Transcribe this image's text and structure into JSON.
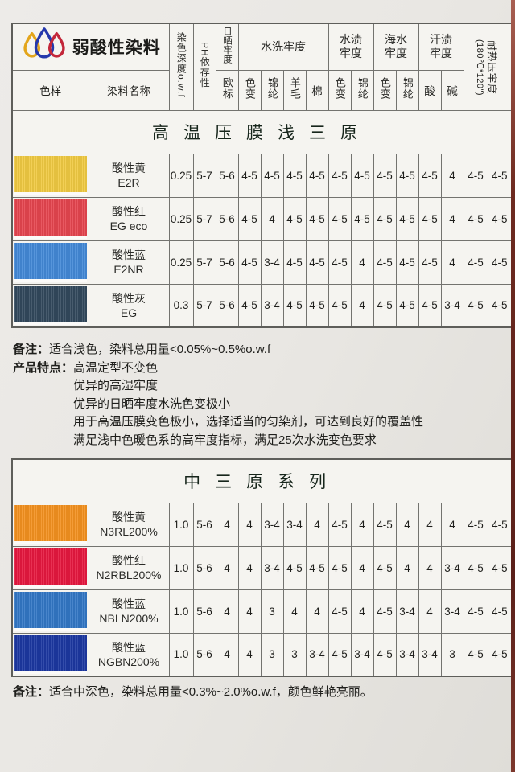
{
  "brand": {
    "title": "弱酸性染料"
  },
  "colors": {
    "banner_green": "#c7e1ca",
    "table_border": "#73736f",
    "page_background": "#eae8e4",
    "edge_strip": "#6d2a20",
    "logo_drops": [
      "#e3a51b",
      "#2438ac",
      "#c3273a"
    ]
  },
  "header": {
    "sample": "色样",
    "name": "染料名称",
    "depth": "染色深度o.w.f",
    "ph": "PH依存性",
    "light": "日晒牢度",
    "eu": "欧标",
    "wash": "水洗牢度",
    "wash_subs": [
      "色变",
      "锦纶",
      "羊毛",
      "棉"
    ],
    "water": "水渍\n牢度",
    "water_subs": [
      "色变",
      "锦纶"
    ],
    "sea": "海水\n牢度",
    "sea_subs": [
      "色变",
      "锦纶"
    ],
    "sweat": "汗渍\n牢度",
    "sweat_subs": [
      "酸",
      "碱"
    ],
    "heat1": "耐热压牢度",
    "heat2": "(180℃*120\")"
  },
  "table1": {
    "banner": "高温压膜浅三原",
    "rows": [
      {
        "swatch": "#f0ca42",
        "name": "酸性黄",
        "code": "E2R",
        "values": [
          "0.25",
          "5-7",
          "5-6",
          "4-5",
          "4-5",
          "4-5",
          "4-5",
          "4-5",
          "4-5",
          "4-5",
          "4-5",
          "4-5",
          "4",
          "4-5",
          "4-5"
        ]
      },
      {
        "swatch": "#e5454f",
        "name": "酸性红",
        "code": "EG eco",
        "values": [
          "0.25",
          "5-7",
          "5-6",
          "4-5",
          "4",
          "4-5",
          "4-5",
          "4-5",
          "4-5",
          "4-5",
          "4-5",
          "4-5",
          "4",
          "4-5",
          "4-5"
        ]
      },
      {
        "swatch": "#4389d7",
        "name": "酸性蓝",
        "code": "E2NR",
        "values": [
          "0.25",
          "5-7",
          "5-6",
          "4-5",
          "3-4",
          "4-5",
          "4-5",
          "4-5",
          "4",
          "4-5",
          "4-5",
          "4-5",
          "4",
          "4-5",
          "4-5"
        ]
      },
      {
        "swatch": "#33495d",
        "name": "酸性灰",
        "code": "EG",
        "values": [
          "0.3",
          "5-7",
          "5-6",
          "4-5",
          "3-4",
          "4-5",
          "4-5",
          "4-5",
          "4",
          "4-5",
          "4-5",
          "4-5",
          "3-4",
          "4-5",
          "4-5"
        ]
      }
    ]
  },
  "notes1": {
    "remark_label": "备注：",
    "remark": "适合浅色，染料总用量<0.05%~0.5%o.w.f",
    "features_label": "产品特点：",
    "features": [
      "高温定型不变色",
      "优异的高湿牢度",
      "优异的日晒牢度水洗色变极小",
      "用于高温压膜变色极小，选择适当的匀染剂，可达到良好的覆盖性",
      "满足浅中色暖色系的高牢度指标，满足25次水洗变色要求"
    ]
  },
  "table2": {
    "banner": "中三原系列",
    "rows": [
      {
        "swatch": "#f39120",
        "name": "酸性黄",
        "code": "N3RL200%",
        "values": [
          "1.0",
          "5-6",
          "4",
          "4",
          "3-4",
          "3-4",
          "4",
          "4-5",
          "4",
          "4-5",
          "4",
          "4",
          "4",
          "4-5",
          "4-5"
        ]
      },
      {
        "swatch": "#e6183f",
        "name": "酸性红",
        "code": "N2RBL200%",
        "values": [
          "1.0",
          "5-6",
          "4",
          "4",
          "3-4",
          "4-5",
          "4-5",
          "4-5",
          "4",
          "4-5",
          "4",
          "4",
          "3-4",
          "4-5",
          "4-5"
        ]
      },
      {
        "swatch": "#3377c5",
        "name": "酸性蓝",
        "code": "NBLN200%",
        "values": [
          "1.0",
          "5-6",
          "4",
          "4",
          "3",
          "4",
          "4",
          "4-5",
          "4",
          "4-5",
          "3-4",
          "4",
          "3-4",
          "4-5",
          "4-5"
        ]
      },
      {
        "swatch": "#1c38a1",
        "name": "酸性蓝",
        "code": "NGBN200%",
        "values": [
          "1.0",
          "5-6",
          "4",
          "4",
          "3",
          "3",
          "3-4",
          "4-5",
          "3-4",
          "4-5",
          "3-4",
          "3-4",
          "3",
          "4-5",
          "4-5"
        ]
      }
    ]
  },
  "notes2": {
    "remark_label": "备注：",
    "remark": "适合中深色，染料总用量<0.3%~2.0%o.w.f，颜色鲜艳亮丽。"
  }
}
